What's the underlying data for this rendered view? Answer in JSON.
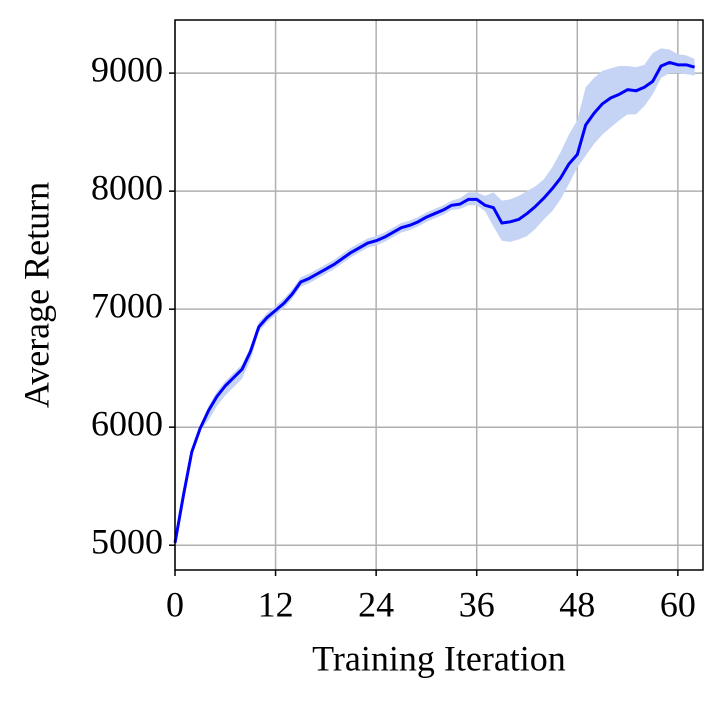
{
  "chart_data": {
    "type": "line",
    "xlabel": "Training Iteration",
    "ylabel": "Average Return",
    "x": [
      0,
      1,
      2,
      3,
      4,
      5,
      6,
      7,
      8,
      9,
      10,
      11,
      12,
      13,
      14,
      15,
      16,
      17,
      18,
      19,
      20,
      21,
      22,
      23,
      24,
      25,
      26,
      27,
      28,
      29,
      30,
      31,
      32,
      33,
      34,
      35,
      36,
      37,
      38,
      39,
      40,
      41,
      42,
      43,
      44,
      45,
      46,
      47,
      48,
      49,
      50,
      51,
      52,
      53,
      54,
      55,
      56,
      57,
      58,
      59,
      60,
      61,
      62
    ],
    "series": [
      {
        "color": "#0000ff",
        "band_color": "#c5d3f5",
        "values": [
          5020,
          5420,
          5790,
          5990,
          6140,
          6260,
          6350,
          6420,
          6490,
          6640,
          6850,
          6930,
          6990,
          7050,
          7130,
          7230,
          7260,
          7300,
          7340,
          7380,
          7430,
          7480,
          7520,
          7560,
          7580,
          7610,
          7650,
          7690,
          7710,
          7740,
          7780,
          7810,
          7840,
          7880,
          7890,
          7930,
          7930,
          7880,
          7860,
          7730,
          7740,
          7760,
          7810,
          7870,
          7940,
          8020,
          8110,
          8230,
          8310,
          8560,
          8660,
          8740,
          8790,
          8820,
          8860,
          8850,
          8880,
          8930,
          9060,
          9090,
          9070,
          9070,
          9050
        ],
        "upper": [
          5030,
          5440,
          5810,
          6010,
          6180,
          6300,
          6390,
          6460,
          6530,
          6680,
          6890,
          6970,
          7030,
          7090,
          7170,
          7270,
          7300,
          7340,
          7380,
          7420,
          7470,
          7520,
          7560,
          7600,
          7620,
          7650,
          7690,
          7730,
          7750,
          7780,
          7820,
          7850,
          7880,
          7920,
          7940,
          7990,
          7990,
          7960,
          7990,
          7920,
          7930,
          7960,
          8000,
          8040,
          8100,
          8200,
          8330,
          8480,
          8600,
          8880,
          8960,
          9020,
          9040,
          9060,
          9060,
          9050,
          9070,
          9170,
          9210,
          9200,
          9160,
          9150,
          9120
        ],
        "lower": [
          5010,
          5400,
          5770,
          5970,
          6060,
          6180,
          6270,
          6340,
          6410,
          6570,
          6810,
          6890,
          6950,
          7010,
          7090,
          7190,
          7220,
          7260,
          7300,
          7340,
          7390,
          7440,
          7480,
          7520,
          7540,
          7570,
          7610,
          7650,
          7670,
          7700,
          7740,
          7770,
          7800,
          7840,
          7850,
          7880,
          7880,
          7830,
          7700,
          7580,
          7570,
          7590,
          7620,
          7680,
          7760,
          7830,
          7930,
          8060,
          8200,
          8300,
          8400,
          8480,
          8540,
          8600,
          8650,
          8650,
          8720,
          8820,
          8960,
          9000,
          9000,
          8990,
          8980
        ]
      }
    ],
    "xlim": [
      0,
      63
    ],
    "ylim": [
      4790,
      9450
    ],
    "xticks": [
      0,
      12,
      24,
      36,
      48,
      60
    ],
    "yticks": [
      5000,
      6000,
      7000,
      8000,
      9000
    ],
    "grid": true
  }
}
